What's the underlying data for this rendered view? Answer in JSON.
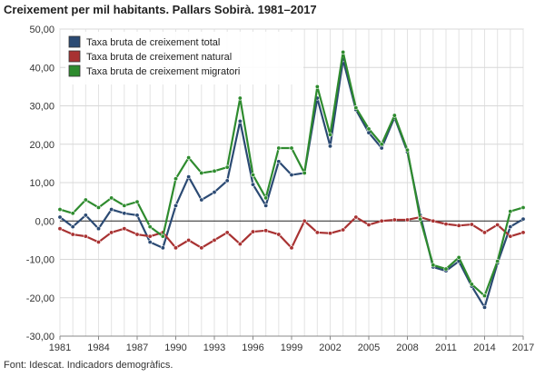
{
  "title": "Creixement per mil habitants. Pallars Sobirà. 1981–2017",
  "source": "Font: Idescat. Indicadors demogràfics.",
  "chart_data": {
    "type": "line",
    "title": "Creixement per mil habitants. Pallars Sobirà. 1981–2017",
    "xlabel": "",
    "ylabel": "",
    "xlim": [
      1981,
      2017
    ],
    "ylim": [
      -30,
      50
    ],
    "grid": true,
    "legend_position": "top-left",
    "x_ticks": [
      "1981",
      "1984",
      "1987",
      "1990",
      "1993",
      "1996",
      "1999",
      "2002",
      "2005",
      "2008",
      "2011",
      "2014",
      "2017"
    ],
    "y_ticks": [
      "50,00",
      "40,00",
      "30,00",
      "20,00",
      "10,00",
      "0,00",
      "-10,00",
      "-20,00",
      "-30,00"
    ],
    "x": [
      1981,
      1982,
      1983,
      1984,
      1985,
      1986,
      1987,
      1988,
      1989,
      1990,
      1991,
      1992,
      1993,
      1994,
      1995,
      1996,
      1997,
      1998,
      1999,
      2000,
      2001,
      2002,
      2003,
      2004,
      2005,
      2006,
      2007,
      2008,
      2009,
      2010,
      2011,
      2012,
      2013,
      2014,
      2015,
      2016,
      2017
    ],
    "series": [
      {
        "name": "Taxa bruta de creixement total",
        "color": "#2b4a73",
        "values": [
          1.0,
          -1.5,
          1.5,
          -2.0,
          3.0,
          2.0,
          1.5,
          -5.5,
          -7.0,
          4.0,
          11.5,
          5.5,
          7.5,
          10.5,
          26.0,
          9.5,
          4.0,
          15.5,
          12.0,
          12.5,
          32.0,
          19.5,
          42.0,
          29.0,
          23.0,
          19.0,
          27.0,
          18.0,
          1.5,
          -12.0,
          -13.0,
          -10.5,
          -17.0,
          -22.5,
          -11.0,
          -1.5,
          0.5
        ]
      },
      {
        "name": "Taxa bruta de creixement natural",
        "color": "#a83232",
        "values": [
          -2.0,
          -3.5,
          -4.0,
          -5.5,
          -3.0,
          -2.0,
          -3.5,
          -4.0,
          -3.0,
          -7.0,
          -5.0,
          -7.0,
          -5.0,
          -3.0,
          -6.0,
          -2.8,
          -2.5,
          -3.5,
          -7.0,
          0.0,
          -3.0,
          -3.2,
          -2.3,
          1.0,
          -1.0,
          0.0,
          0.3,
          0.3,
          1.0,
          0.0,
          -0.8,
          -1.2,
          -0.9,
          -3.0,
          -1.0,
          -4.0,
          -3.0
        ]
      },
      {
        "name": "Taxa bruta de creixement migratori",
        "color": "#2e8b2e",
        "values": [
          3.0,
          2.0,
          5.5,
          3.5,
          6.0,
          4.0,
          5.0,
          -1.5,
          -4.0,
          11.0,
          16.5,
          12.5,
          13.0,
          14.0,
          32.0,
          12.0,
          6.0,
          19.0,
          19.0,
          12.5,
          35.0,
          22.5,
          44.0,
          29.5,
          24.0,
          20.0,
          27.5,
          18.5,
          0.5,
          -11.5,
          -12.5,
          -9.5,
          -16.5,
          -19.5,
          -10.5,
          2.5,
          3.5
        ]
      }
    ]
  }
}
